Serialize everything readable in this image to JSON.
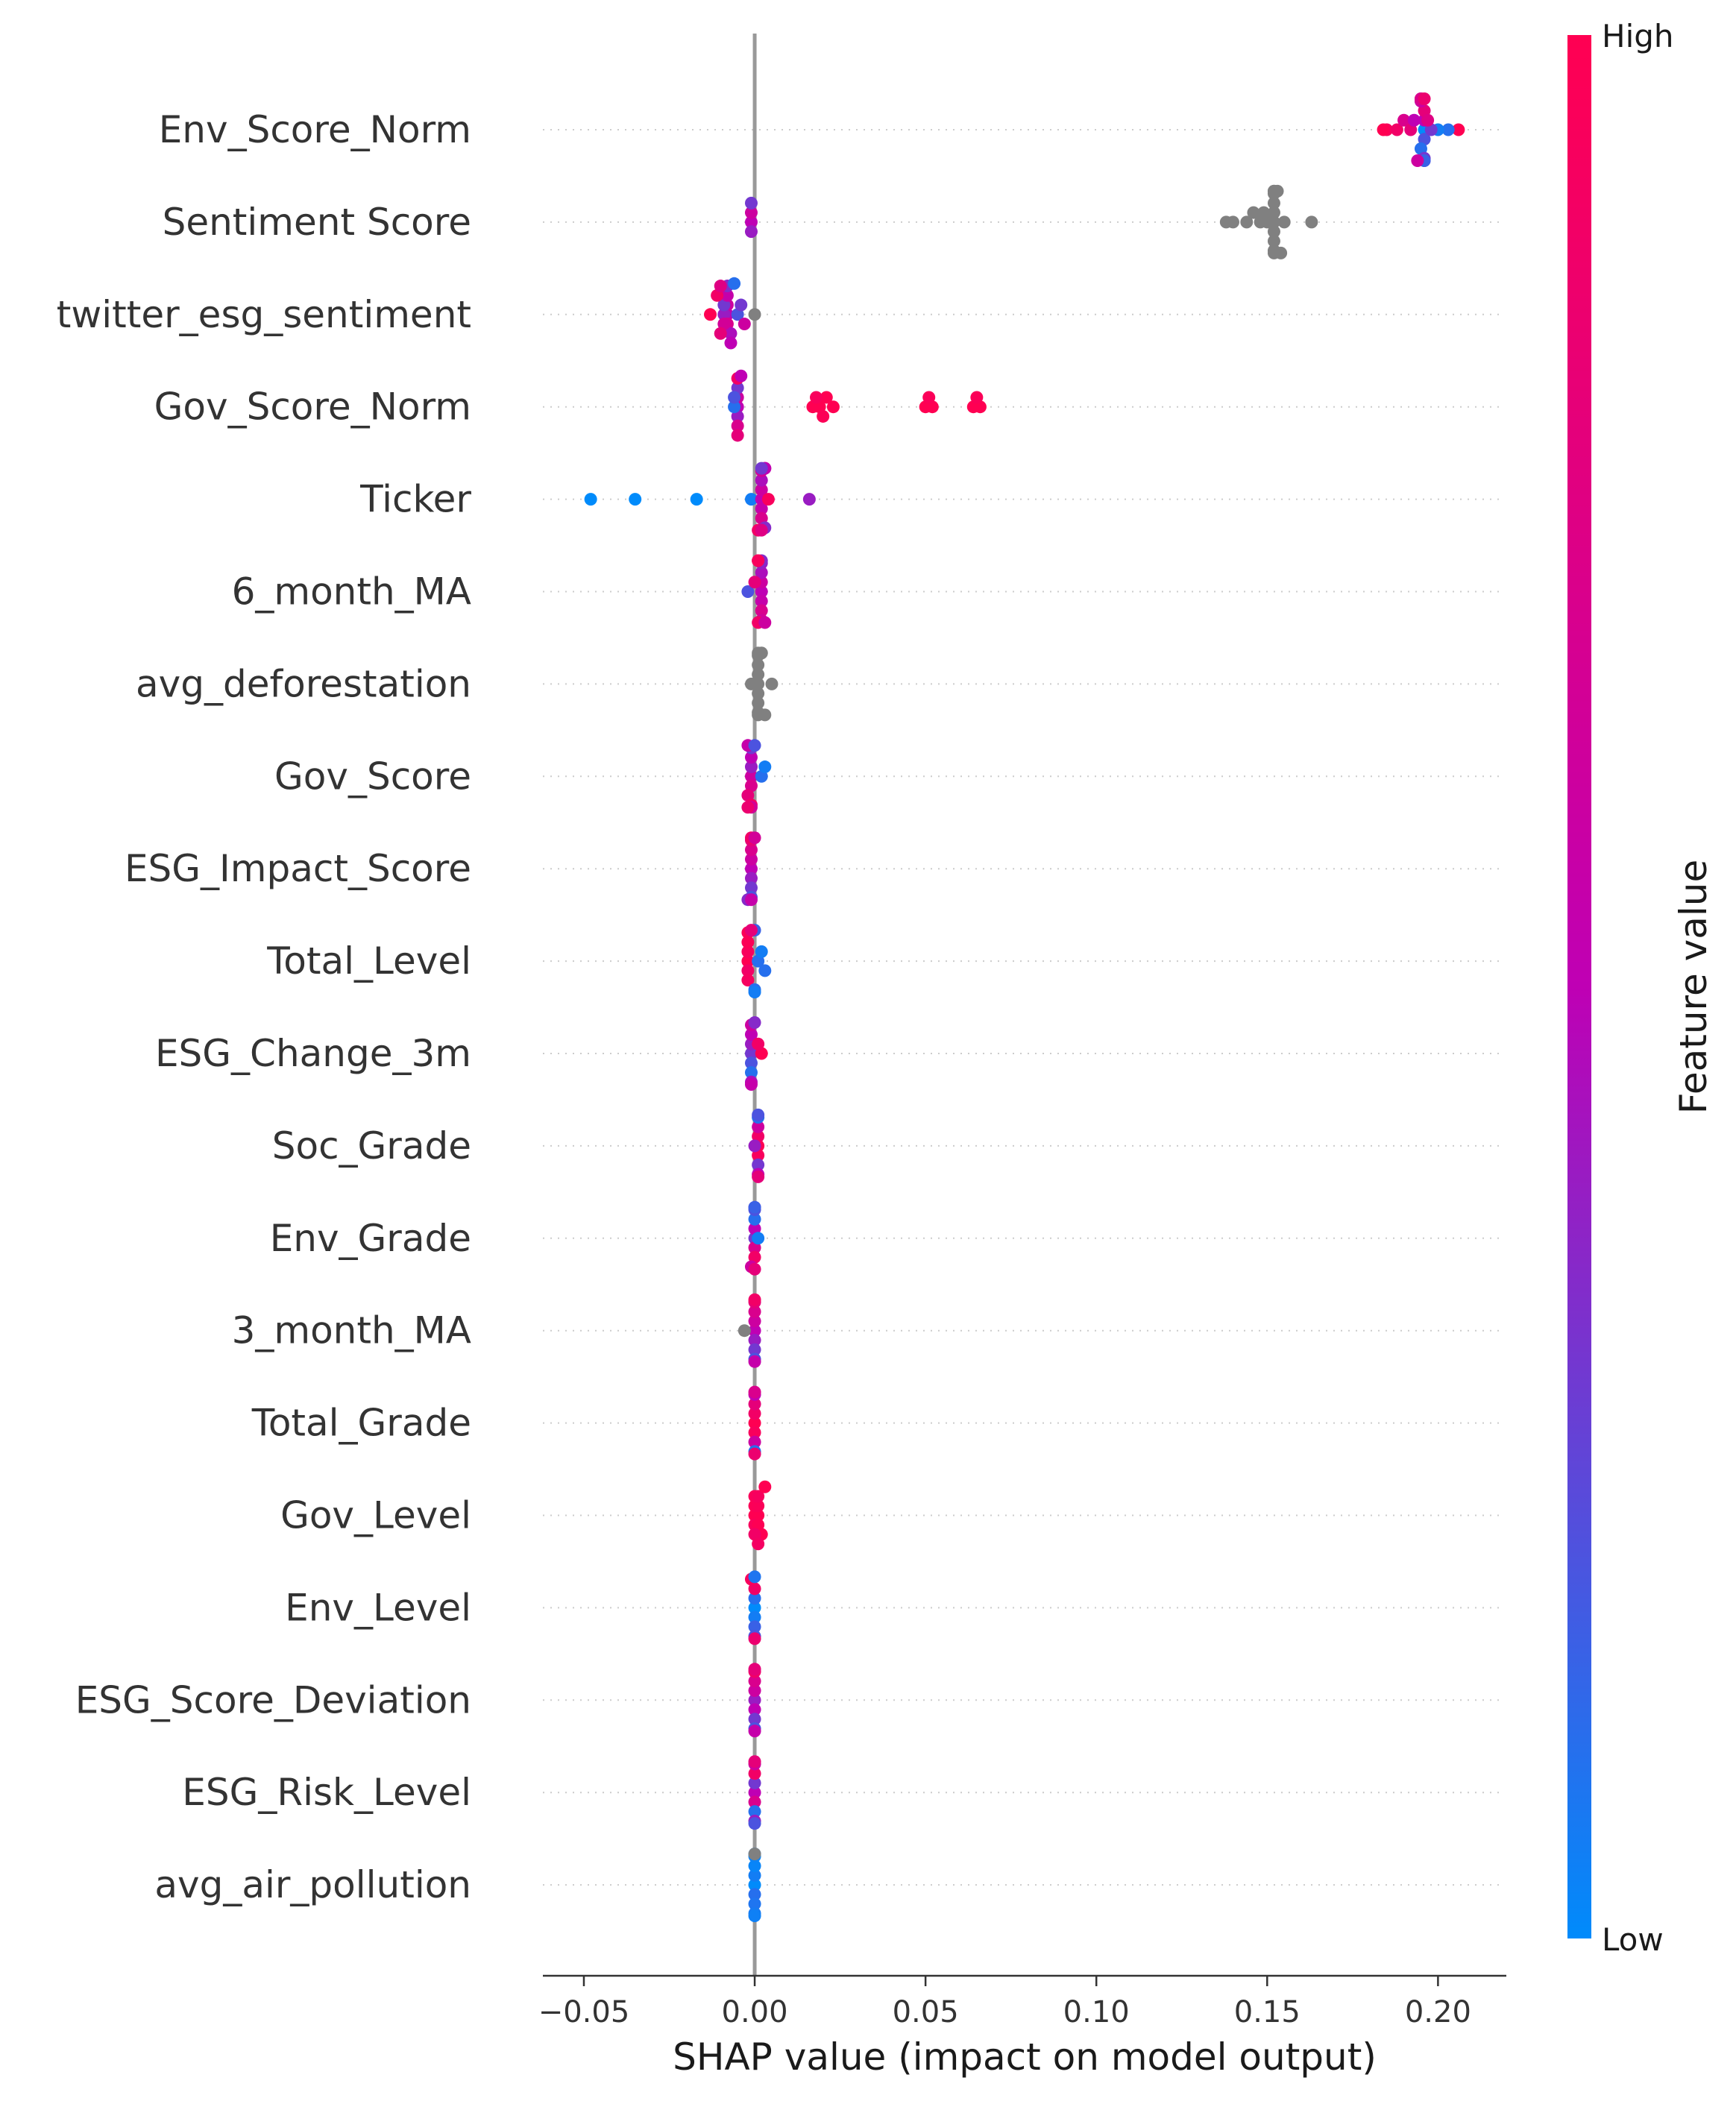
{
  "chart_data": {
    "type": "scatter",
    "subtype": "shap-beeswarm",
    "title": "",
    "xlabel": "SHAP value (impact on model output)",
    "ylabel": "",
    "xlim": [
      -0.062,
      0.22
    ],
    "xticks": [
      -0.05,
      0.0,
      0.05,
      0.1,
      0.15,
      0.2
    ],
    "xtick_labels": [
      "−0.05",
      "0.00",
      "0.05",
      "0.10",
      "0.15",
      "0.20"
    ],
    "zero_line": 0.0,
    "grid": "dotted horizontal row lines",
    "colorbar": {
      "label": "Feature value",
      "high_label": "High",
      "low_label": "Low",
      "high_color": "#ff0052",
      "mid_color": "#bf00b4",
      "low_color": "#008bfb",
      "placement": "right"
    },
    "missing_value_color": "#808080",
    "features": [
      {
        "name": "Env_Score_Norm",
        "points": [
          [
            0.196,
            0.0
          ],
          [
            0.196,
            0.5
          ],
          [
            0.196,
            0.2
          ],
          [
            0.196,
            0.8
          ],
          [
            0.195,
            0.1
          ],
          [
            0.195,
            0.6
          ],
          [
            0.196,
            0.3
          ],
          [
            0.195,
            0.9
          ],
          [
            0.196,
            0.4
          ],
          [
            0.195,
            0.7
          ],
          [
            0.196,
            0.15
          ],
          [
            0.196,
            0.85
          ],
          [
            0.185,
            0.95
          ],
          [
            0.188,
            0.9
          ],
          [
            0.184,
            1.0
          ],
          [
            0.19,
            0.7
          ],
          [
            0.192,
            0.8
          ],
          [
            0.194,
            0.6
          ],
          [
            0.206,
            1.0
          ],
          [
            0.203,
            0.1
          ],
          [
            0.2,
            0.05
          ],
          [
            0.198,
            0.3
          ],
          [
            0.193,
            0.5
          ],
          [
            0.197,
            0.75
          ]
        ]
      },
      {
        "name": "Sentiment Score",
        "points": [
          [
            -0.001,
            0.5
          ],
          [
            -0.001,
            0.6
          ],
          [
            -0.001,
            0.4
          ],
          [
            -0.001,
            0.3
          ],
          [
            0.152,
            "nan"
          ],
          [
            0.152,
            "nan"
          ],
          [
            0.152,
            "nan"
          ],
          [
            0.152,
            "nan"
          ],
          [
            0.152,
            "nan"
          ],
          [
            0.152,
            "nan"
          ],
          [
            0.152,
            "nan"
          ],
          [
            0.152,
            "nan"
          ],
          [
            0.152,
            "nan"
          ],
          [
            0.152,
            "nan"
          ],
          [
            0.15,
            "nan"
          ],
          [
            0.154,
            "nan"
          ],
          [
            0.148,
            "nan"
          ],
          [
            0.146,
            "nan"
          ],
          [
            0.155,
            "nan"
          ],
          [
            0.149,
            "nan"
          ],
          [
            0.153,
            "nan"
          ],
          [
            0.14,
            "nan"
          ],
          [
            0.138,
            "nan"
          ],
          [
            0.144,
            "nan"
          ],
          [
            0.163,
            "nan"
          ]
        ]
      },
      {
        "name": "twitter_esg_sentiment",
        "points": [
          [
            -0.008,
            0.5
          ],
          [
            -0.008,
            0.6
          ],
          [
            -0.009,
            0.4
          ],
          [
            -0.008,
            0.7
          ],
          [
            -0.009,
            0.3
          ],
          [
            -0.008,
            0.55
          ],
          [
            -0.007,
            0.45
          ],
          [
            -0.009,
            0.65
          ],
          [
            -0.008,
            0.35
          ],
          [
            -0.007,
            0.5
          ],
          [
            -0.013,
            1.0
          ],
          [
            -0.011,
            0.9
          ],
          [
            -0.01,
            0.8
          ],
          [
            -0.005,
            0.2
          ],
          [
            -0.004,
            0.3
          ],
          [
            -0.003,
            0.6
          ],
          [
            -0.006,
            0.1
          ],
          [
            0.0,
            "nan"
          ],
          [
            -0.01,
            0.75
          ]
        ]
      },
      {
        "name": "Gov_Score_Norm",
        "points": [
          [
            -0.005,
            0.5
          ],
          [
            -0.005,
            0.6
          ],
          [
            -0.005,
            0.4
          ],
          [
            -0.005,
            0.3
          ],
          [
            -0.005,
            0.7
          ],
          [
            -0.005,
            0.9
          ],
          [
            -0.005,
            0.8
          ],
          [
            -0.006,
            0.1
          ],
          [
            -0.006,
            0.2
          ],
          [
            -0.004,
            0.5
          ],
          [
            0.017,
            1.0
          ],
          [
            0.019,
            1.0
          ],
          [
            0.021,
            1.0
          ],
          [
            0.023,
            1.0
          ],
          [
            0.018,
            0.95
          ],
          [
            0.02,
            0.98
          ],
          [
            0.05,
            1.0
          ],
          [
            0.052,
            1.0
          ],
          [
            0.064,
            1.0
          ],
          [
            0.066,
            1.0
          ],
          [
            0.051,
            0.97
          ],
          [
            0.065,
            0.97
          ]
        ]
      },
      {
        "name": "Ticker",
        "points": [
          [
            -0.048,
            0.0
          ],
          [
            -0.035,
            0.0
          ],
          [
            -0.017,
            0.0
          ],
          [
            -0.001,
            0.05
          ],
          [
            0.016,
            0.4
          ],
          [
            0.002,
            0.5
          ],
          [
            0.002,
            0.6
          ],
          [
            0.002,
            0.55
          ],
          [
            0.002,
            0.45
          ],
          [
            0.002,
            0.7
          ],
          [
            0.002,
            0.65
          ],
          [
            0.003,
            0.35
          ],
          [
            0.003,
            0.8
          ],
          [
            0.001,
            0.9
          ],
          [
            0.004,
            0.95
          ],
          [
            0.003,
            0.5
          ],
          [
            0.002,
            0.75
          ],
          [
            0.002,
            0.3
          ]
        ]
      },
      {
        "name": "6_month_MA",
        "points": [
          [
            0.002,
            0.5
          ],
          [
            0.002,
            0.6
          ],
          [
            0.002,
            0.55
          ],
          [
            0.002,
            0.45
          ],
          [
            0.002,
            0.7
          ],
          [
            0.002,
            0.4
          ],
          [
            0.002,
            0.65
          ],
          [
            0.002,
            0.35
          ],
          [
            0.001,
            0.9
          ],
          [
            0.001,
            0.85
          ],
          [
            -0.002,
            0.2
          ],
          [
            0.0,
            0.8
          ],
          [
            0.003,
            0.6
          ],
          [
            0.001,
            0.95
          ]
        ]
      },
      {
        "name": "avg_deforestation",
        "points": [
          [
            0.001,
            "nan"
          ],
          [
            0.001,
            "nan"
          ],
          [
            0.001,
            "nan"
          ],
          [
            0.001,
            "nan"
          ],
          [
            0.001,
            "nan"
          ],
          [
            0.001,
            "nan"
          ],
          [
            0.001,
            "nan"
          ],
          [
            0.001,
            "nan"
          ],
          [
            0.001,
            "nan"
          ],
          [
            0.002,
            "nan"
          ],
          [
            0.003,
            "nan"
          ],
          [
            0.005,
            "nan"
          ],
          [
            -0.001,
            "nan"
          ],
          [
            0.002,
            "nan"
          ]
        ]
      },
      {
        "name": "Gov_Score",
        "points": [
          [
            -0.001,
            0.6
          ],
          [
            -0.001,
            0.4
          ],
          [
            -0.001,
            0.7
          ],
          [
            -0.001,
            0.5
          ],
          [
            -0.002,
            0.8
          ],
          [
            -0.001,
            0.3
          ],
          [
            -0.001,
            0.9
          ],
          [
            -0.002,
            0.55
          ],
          [
            -0.001,
            0.65
          ],
          [
            0.0,
            0.2
          ],
          [
            0.002,
            0.1
          ],
          [
            0.003,
            0.05
          ],
          [
            -0.002,
            0.85
          ]
        ]
      },
      {
        "name": "ESG_Impact_Score",
        "points": [
          [
            -0.001,
            0.5
          ],
          [
            -0.001,
            0.6
          ],
          [
            -0.001,
            0.4
          ],
          [
            -0.001,
            0.7
          ],
          [
            -0.001,
            0.3
          ],
          [
            -0.001,
            0.8
          ],
          [
            -0.001,
            0.2
          ],
          [
            -0.001,
            0.9
          ],
          [
            -0.002,
            0.35
          ],
          [
            0.0,
            0.65
          ],
          [
            -0.001,
            0.55
          ]
        ]
      },
      {
        "name": "Total_Level",
        "points": [
          [
            -0.002,
            1.0
          ],
          [
            -0.002,
            0.95
          ],
          [
            -0.002,
            0.9
          ],
          [
            -0.002,
            0.98
          ],
          [
            -0.002,
            0.93
          ],
          [
            -0.002,
            0.97
          ],
          [
            0.0,
            0.1
          ],
          [
            0.0,
            0.15
          ],
          [
            0.0,
            0.05
          ],
          [
            0.001,
            0.1
          ],
          [
            0.002,
            0.05
          ],
          [
            0.003,
            0.1
          ],
          [
            -0.001,
            0.8
          ]
        ]
      },
      {
        "name": "ESG_Change_3m",
        "points": [
          [
            -0.001,
            0.3
          ],
          [
            -0.001,
            0.4
          ],
          [
            -0.001,
            0.2
          ],
          [
            -0.001,
            0.5
          ],
          [
            -0.001,
            0.1
          ],
          [
            -0.001,
            0.6
          ],
          [
            -0.001,
            0.45
          ],
          [
            0.0,
            0.35
          ],
          [
            0.002,
            1.0
          ],
          [
            0.001,
            0.9
          ],
          [
            -0.001,
            0.55
          ]
        ]
      },
      {
        "name": "Soc_Grade",
        "points": [
          [
            0.001,
            1.0
          ],
          [
            0.001,
            0.9
          ],
          [
            0.001,
            0.95
          ],
          [
            0.001,
            0.6
          ],
          [
            0.001,
            0.3
          ],
          [
            0.001,
            0.1
          ],
          [
            0.001,
            0.5
          ],
          [
            0.001,
            0.2
          ],
          [
            0.001,
            0.8
          ],
          [
            0.0,
            0.4
          ]
        ]
      },
      {
        "name": "Env_Grade",
        "points": [
          [
            0.0,
            0.3
          ],
          [
            0.0,
            0.5
          ],
          [
            0.0,
            0.7
          ],
          [
            0.0,
            0.1
          ],
          [
            0.0,
            0.9
          ],
          [
            0.0,
            0.2
          ],
          [
            0.001,
            0.05
          ],
          [
            -0.001,
            0.6
          ],
          [
            0.0,
            0.4
          ],
          [
            0.0,
            0.8
          ],
          [
            0.0,
            0.15
          ]
        ]
      },
      {
        "name": "3_month_MA",
        "points": [
          [
            0.0,
            0.5
          ],
          [
            0.0,
            0.6
          ],
          [
            0.0,
            0.4
          ],
          [
            0.0,
            0.7
          ],
          [
            0.0,
            0.3
          ],
          [
            0.0,
            0.8
          ],
          [
            0.0,
            0.2
          ],
          [
            0.0,
            0.9
          ],
          [
            -0.003,
            "nan"
          ],
          [
            0.0,
            0.55
          ]
        ]
      },
      {
        "name": "Total_Grade",
        "points": [
          [
            0.0,
            1.0
          ],
          [
            0.0,
            0.9
          ],
          [
            0.0,
            0.95
          ],
          [
            0.0,
            0.8
          ],
          [
            0.0,
            0.6
          ],
          [
            0.0,
            0.5
          ],
          [
            0.0,
            0.1
          ],
          [
            0.0,
            0.7
          ],
          [
            0.0,
            0.85
          ]
        ]
      },
      {
        "name": "Gov_Level",
        "points": [
          [
            0.0,
            1.0
          ],
          [
            0.001,
            1.0
          ],
          [
            0.0,
            0.98
          ],
          [
            0.001,
            0.97
          ],
          [
            0.0,
            0.95
          ],
          [
            0.001,
            0.99
          ],
          [
            0.0,
            0.96
          ],
          [
            0.001,
            0.94
          ],
          [
            0.002,
            1.0
          ],
          [
            0.003,
            1.0
          ],
          [
            0.0,
            0.9
          ],
          [
            0.001,
            0.92
          ]
        ]
      },
      {
        "name": "Env_Level",
        "points": [
          [
            0.0,
            0.0
          ],
          [
            0.0,
            0.1
          ],
          [
            0.0,
            0.05
          ],
          [
            0.0,
            0.9
          ],
          [
            0.0,
            0.15
          ],
          [
            -0.001,
            0.95
          ],
          [
            0.0,
            0.2
          ],
          [
            0.0,
            0.08
          ],
          [
            0.0,
            0.85
          ]
        ]
      },
      {
        "name": "ESG_Score_Deviation",
        "points": [
          [
            0.0,
            0.4
          ],
          [
            0.0,
            0.6
          ],
          [
            0.0,
            0.5
          ],
          [
            0.0,
            0.7
          ],
          [
            0.0,
            0.3
          ],
          [
            0.0,
            0.9
          ],
          [
            0.0,
            0.2
          ],
          [
            0.0,
            0.8
          ],
          [
            0.0,
            0.55
          ]
        ]
      },
      {
        "name": "ESG_Risk_Level",
        "points": [
          [
            0.0,
            0.5
          ],
          [
            0.0,
            0.3
          ],
          [
            0.0,
            0.7
          ],
          [
            0.0,
            0.9
          ],
          [
            0.0,
            0.1
          ],
          [
            0.0,
            0.6
          ],
          [
            0.0,
            0.4
          ],
          [
            0.0,
            0.8
          ],
          [
            0.0,
            0.2
          ]
        ]
      },
      {
        "name": "avg_air_pollution",
        "points": [
          [
            0.0,
            0.0
          ],
          [
            0.0,
            0.05
          ],
          [
            0.0,
            0.1
          ],
          [
            0.0,
            0.02
          ],
          [
            0.0,
            0.08
          ],
          [
            0.0,
            0.03
          ],
          [
            0.0,
            0.06
          ],
          [
            0.0,
            0.01
          ],
          [
            0.0,
            0.04
          ],
          [
            0.0,
            "nan"
          ]
        ]
      }
    ]
  }
}
